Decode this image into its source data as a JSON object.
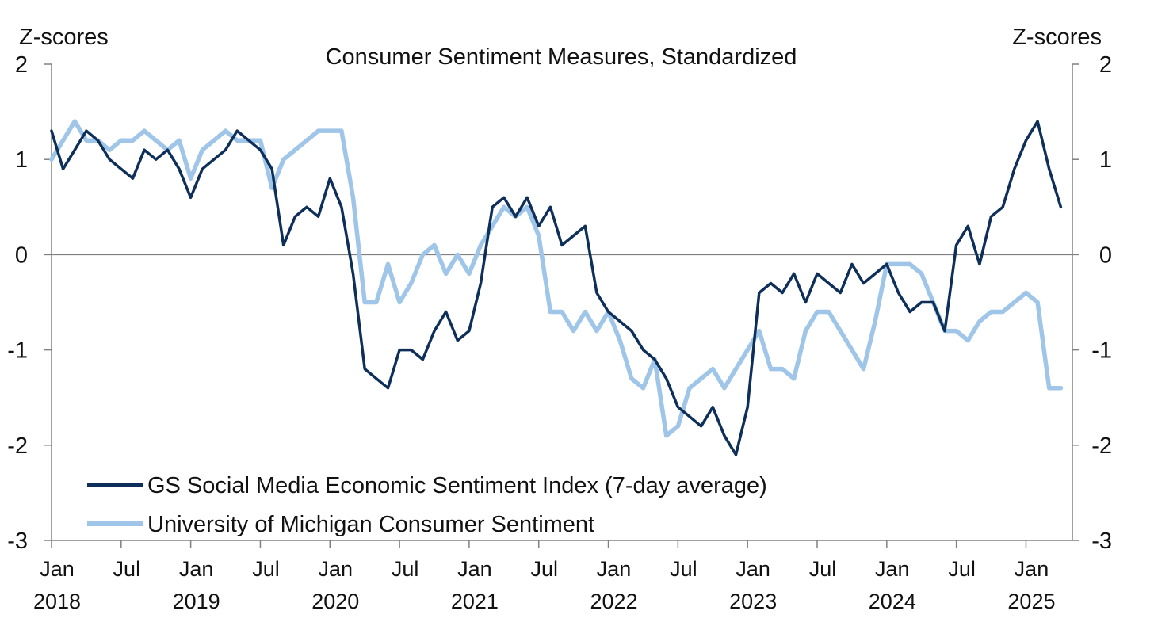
{
  "chart_data": {
    "type": "line",
    "title": "Consumer Sentiment Measures, Standardized",
    "y_unit_left": "Z-scores",
    "y_unit_right": "Z-scores",
    "ylim": [
      -3,
      2
    ],
    "y_ticks": [
      2,
      1,
      0,
      -1,
      -2,
      -3
    ],
    "y_tick_labels": [
      "2",
      "1",
      "0",
      "-1",
      "-2",
      "-3"
    ],
    "xlim": [
      "2018-01",
      "2025-05"
    ],
    "x_ticks": [
      {
        "month": "Jan",
        "year": "2018"
      },
      {
        "month": "Jul",
        "year": ""
      },
      {
        "month": "Jan",
        "year": "2019"
      },
      {
        "month": "Jul",
        "year": ""
      },
      {
        "month": "Jan",
        "year": "2020"
      },
      {
        "month": "Jul",
        "year": ""
      },
      {
        "month": "Jan",
        "year": "2021"
      },
      {
        "month": "Jul",
        "year": ""
      },
      {
        "month": "Jan",
        "year": "2022"
      },
      {
        "month": "Jul",
        "year": ""
      },
      {
        "month": "Jan",
        "year": "2023"
      },
      {
        "month": "Jul",
        "year": ""
      },
      {
        "month": "Jan",
        "year": "2024"
      },
      {
        "month": "Jul",
        "year": ""
      },
      {
        "month": "Jan",
        "year": "2025"
      }
    ],
    "grid": false,
    "zero_line": true,
    "legend_position": "bottom-left",
    "series": [
      {
        "name": "GS Social Media Economic Sentiment Index (7-day average)",
        "color": "#0d2f5a",
        "x": [
          "2018-01",
          "2018-02",
          "2018-03",
          "2018-04",
          "2018-05",
          "2018-06",
          "2018-07",
          "2018-08",
          "2018-09",
          "2018-10",
          "2018-11",
          "2018-12",
          "2019-01",
          "2019-02",
          "2019-03",
          "2019-04",
          "2019-05",
          "2019-06",
          "2019-07",
          "2019-08",
          "2019-09",
          "2019-10",
          "2019-11",
          "2019-12",
          "2020-01",
          "2020-02",
          "2020-03",
          "2020-04",
          "2020-05",
          "2020-06",
          "2020-07",
          "2020-08",
          "2020-09",
          "2020-10",
          "2020-11",
          "2020-12",
          "2021-01",
          "2021-02",
          "2021-03",
          "2021-04",
          "2021-05",
          "2021-06",
          "2021-07",
          "2021-08",
          "2021-09",
          "2021-10",
          "2021-11",
          "2021-12",
          "2022-01",
          "2022-02",
          "2022-03",
          "2022-04",
          "2022-05",
          "2022-06",
          "2022-07",
          "2022-08",
          "2022-09",
          "2022-10",
          "2022-11",
          "2022-12",
          "2023-01",
          "2023-02",
          "2023-03",
          "2023-04",
          "2023-05",
          "2023-06",
          "2023-07",
          "2023-08",
          "2023-09",
          "2023-10",
          "2023-11",
          "2023-12",
          "2024-01",
          "2024-02",
          "2024-03",
          "2024-04",
          "2024-05",
          "2024-06",
          "2024-07",
          "2024-08",
          "2024-09",
          "2024-10",
          "2024-11",
          "2024-12",
          "2025-01",
          "2025-02",
          "2025-03",
          "2025-04"
        ],
        "values": [
          1.3,
          0.9,
          1.1,
          1.3,
          1.2,
          1.0,
          0.9,
          0.8,
          1.1,
          1.0,
          1.1,
          0.9,
          0.6,
          0.9,
          1.0,
          1.1,
          1.3,
          1.2,
          1.1,
          0.9,
          0.1,
          0.4,
          0.5,
          0.4,
          0.8,
          0.5,
          -0.2,
          -1.2,
          -1.3,
          -1.4,
          -1.0,
          -1.0,
          -1.1,
          -0.8,
          -0.6,
          -0.9,
          -0.8,
          -0.3,
          0.5,
          0.6,
          0.4,
          0.6,
          0.3,
          0.5,
          0.1,
          0.2,
          0.3,
          -0.4,
          -0.6,
          -0.7,
          -0.8,
          -1.0,
          -1.1,
          -1.3,
          -1.6,
          -1.7,
          -1.8,
          -1.6,
          -1.9,
          -2.1,
          -1.6,
          -0.4,
          -0.3,
          -0.4,
          -0.2,
          -0.5,
          -0.2,
          -0.3,
          -0.4,
          -0.1,
          -0.3,
          -0.2,
          -0.1,
          -0.4,
          -0.6,
          -0.5,
          -0.5,
          -0.8,
          0.1,
          0.3,
          -0.1,
          0.4,
          0.5,
          0.9,
          1.2,
          1.4,
          0.9,
          0.5
        ]
      },
      {
        "name": "University of Michigan Consumer Sentiment",
        "color": "#9fc5e8",
        "x": [
          "2018-01",
          "2018-02",
          "2018-03",
          "2018-04",
          "2018-05",
          "2018-06",
          "2018-07",
          "2018-08",
          "2018-09",
          "2018-10",
          "2018-11",
          "2018-12",
          "2019-01",
          "2019-02",
          "2019-03",
          "2019-04",
          "2019-05",
          "2019-06",
          "2019-07",
          "2019-08",
          "2019-09",
          "2019-10",
          "2019-11",
          "2019-12",
          "2020-01",
          "2020-02",
          "2020-03",
          "2020-04",
          "2020-05",
          "2020-06",
          "2020-07",
          "2020-08",
          "2020-09",
          "2020-10",
          "2020-11",
          "2020-12",
          "2021-01",
          "2021-02",
          "2021-03",
          "2021-04",
          "2021-05",
          "2021-06",
          "2021-07",
          "2021-08",
          "2021-09",
          "2021-10",
          "2021-11",
          "2021-12",
          "2022-01",
          "2022-02",
          "2022-03",
          "2022-04",
          "2022-05",
          "2022-06",
          "2022-07",
          "2022-08",
          "2022-09",
          "2022-10",
          "2022-11",
          "2022-12",
          "2023-01",
          "2023-02",
          "2023-03",
          "2023-04",
          "2023-05",
          "2023-06",
          "2023-07",
          "2023-08",
          "2023-09",
          "2023-10",
          "2023-11",
          "2023-12",
          "2024-01",
          "2024-02",
          "2024-03",
          "2024-04",
          "2024-05",
          "2024-06",
          "2024-07",
          "2024-08",
          "2024-09",
          "2024-10",
          "2024-11",
          "2024-12",
          "2025-01",
          "2025-02",
          "2025-03",
          "2025-04"
        ],
        "values": [
          1.0,
          1.2,
          1.4,
          1.2,
          1.2,
          1.1,
          1.2,
          1.2,
          1.3,
          1.2,
          1.1,
          1.2,
          0.8,
          1.1,
          1.2,
          1.3,
          1.2,
          1.2,
          1.2,
          0.7,
          1.0,
          1.1,
          1.2,
          1.3,
          1.3,
          1.3,
          0.6,
          -0.5,
          -0.5,
          -0.1,
          -0.5,
          -0.3,
          0.0,
          0.1,
          -0.2,
          0.0,
          -0.2,
          0.1,
          0.3,
          0.5,
          0.4,
          0.5,
          0.2,
          -0.6,
          -0.6,
          -0.8,
          -0.6,
          -0.8,
          -0.6,
          -0.9,
          -1.3,
          -1.4,
          -1.1,
          -1.9,
          -1.8,
          -1.4,
          -1.3,
          -1.2,
          -1.4,
          -1.2,
          -1.0,
          -0.8,
          -1.2,
          -1.2,
          -1.3,
          -0.8,
          -0.6,
          -0.6,
          -0.8,
          -1.0,
          -1.2,
          -0.7,
          -0.1,
          -0.1,
          -0.1,
          -0.2,
          -0.5,
          -0.8,
          -0.8,
          -0.9,
          -0.7,
          -0.6,
          -0.6,
          -0.5,
          -0.4,
          -0.5,
          -1.4,
          -1.4
        ]
      }
    ]
  }
}
